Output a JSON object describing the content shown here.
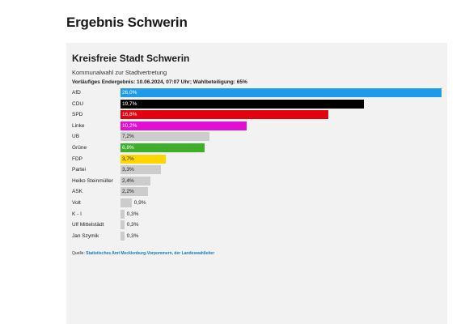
{
  "page": {
    "title": "Ergebnis Schwerin"
  },
  "chart_data": {
    "type": "bar",
    "title": "Kreisfreie Stadt Schwerin",
    "subtitle": "Kommunalwahl zur Stadtvertretung",
    "meta": "Vorläufiges Endergebnis: 10.06.2024, 07:07 Uhr; Wahlbeteiligung: 65%",
    "categories": [
      "AfD",
      "CDU",
      "SPD",
      "Linke",
      "UB",
      "Grüne",
      "FDP",
      "Partei",
      "Heiko Steinmüller",
      "ASK",
      "Volt",
      "K - I",
      "Ulf Mittelstädt",
      "Jan Szymik"
    ],
    "values": [
      26.0,
      19.7,
      16.8,
      10.2,
      7.2,
      6.8,
      3.7,
      3.3,
      2.4,
      2.2,
      0.9,
      0.3,
      0.3,
      0.3
    ],
    "value_labels": [
      "26,0%",
      "19,7%",
      "16,8%",
      "10,2%",
      "7,2%",
      "6,8%",
      "3,7%",
      "3,3%",
      "2,4%",
      "2,2%",
      "0,9%",
      "0,3%",
      "0,3%",
      "0,3%"
    ],
    "colors": [
      "#1e9be8",
      "#000000",
      "#e3000f",
      "#e20fd2",
      "#cccccc",
      "#3fae2a",
      "#ffd600",
      "#cccccc",
      "#cccccc",
      "#cccccc",
      "#cccccc",
      "#cccccc",
      "#cccccc",
      "#cccccc"
    ],
    "label_colors": [
      "#ffffff",
      "#ffffff",
      "#ffffff",
      "#ffffff",
      "#222222",
      "#ffffff",
      "#222222",
      "#222222",
      "#222222",
      "#222222",
      "#222222",
      "#222222",
      "#222222",
      "#222222"
    ],
    "xlim": [
      0,
      26.0
    ],
    "grid": false,
    "legend": "none"
  },
  "source": {
    "prefix": "Quelle:",
    "text": "Statistisches Amt Mecklenburg-Vorpommern, der Landeswahlleiter"
  }
}
